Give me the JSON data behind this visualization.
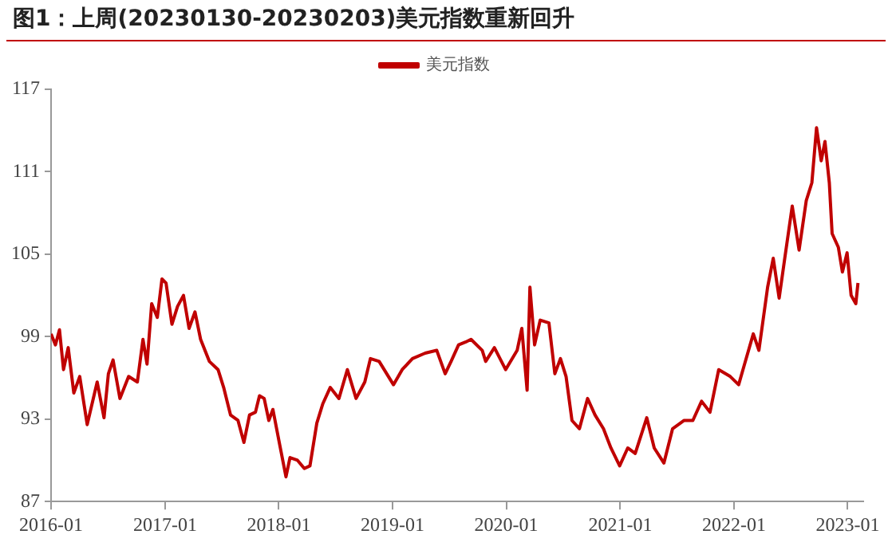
{
  "chart_data": {
    "type": "line",
    "title": "图1：上周(20230130-20230203)美元指数重新回升",
    "x": [
      "2016-01-01",
      "2016-01-15",
      "2016-01-28",
      "2016-02-10",
      "2016-02-25",
      "2016-03-14",
      "2016-04-02",
      "2016-04-26",
      "2016-05-28",
      "2016-06-19",
      "2016-07-03",
      "2016-07-18",
      "2016-08-09",
      "2016-09-06",
      "2016-10-04",
      "2016-10-22",
      "2016-11-04",
      "2016-11-19",
      "2016-12-07",
      "2016-12-22",
      "2017-01-04",
      "2017-01-23",
      "2017-02-10",
      "2017-03-01",
      "2017-03-19",
      "2017-04-07",
      "2017-04-25",
      "2017-05-23",
      "2017-06-20",
      "2017-07-08",
      "2017-07-30",
      "2017-08-23",
      "2017-09-11",
      "2017-09-29",
      "2017-10-18",
      "2017-10-31",
      "2017-11-15",
      "2017-11-30",
      "2017-12-13",
      "2018-01-05",
      "2018-01-24",
      "2018-02-06",
      "2018-03-02",
      "2018-03-24",
      "2018-04-11",
      "2018-05-03",
      "2018-05-22",
      "2018-06-15",
      "2018-07-13",
      "2018-08-09",
      "2018-09-06",
      "2018-10-04",
      "2018-10-22",
      "2018-11-19",
      "2019-01-04",
      "2019-02-01",
      "2019-03-06",
      "2019-04-16",
      "2019-05-23",
      "2019-06-19",
      "2019-07-08",
      "2019-08-01",
      "2019-08-23",
      "2019-09-10",
      "2019-10-16",
      "2019-10-27",
      "2019-11-24",
      "2019-12-30",
      "2020-02-05",
      "2020-02-20",
      "2020-03-08",
      "2020-03-17",
      "2020-04-01",
      "2020-04-19",
      "2020-05-17",
      "2020-06-05",
      "2020-06-23",
      "2020-07-11",
      "2020-07-30",
      "2020-08-23",
      "2020-09-18",
      "2020-10-12",
      "2020-11-08",
      "2020-12-02",
      "2020-12-30",
      "2021-01-25",
      "2021-02-18",
      "2021-03-27",
      "2021-04-20",
      "2021-05-21",
      "2021-06-18",
      "2021-07-25",
      "2021-08-22",
      "2021-09-19",
      "2021-10-16",
      "2021-11-13",
      "2021-12-20",
      "2022-01-16",
      "2022-02-04",
      "2022-03-04",
      "2022-03-22",
      "2022-04-19",
      "2022-05-07",
      "2022-05-26",
      "2022-06-13",
      "2022-07-07",
      "2022-07-29",
      "2022-08-21",
      "2022-09-08",
      "2022-09-23",
      "2022-10-08",
      "2022-10-20",
      "2022-11-03",
      "2022-11-12",
      "2022-12-02",
      "2022-12-15",
      "2022-12-30",
      "2023-01-12",
      "2023-01-27",
      "2023-02-03"
    ],
    "series": [
      {
        "name": "美元指数",
        "color": "#c00000",
        "values": [
          99.2,
          98.4,
          99.5,
          96.6,
          98.2,
          94.9,
          96.1,
          92.6,
          95.7,
          93.1,
          96.3,
          97.3,
          94.5,
          96.1,
          95.7,
          98.8,
          97.0,
          101.4,
          100.4,
          103.2,
          102.9,
          99.9,
          101.2,
          102.0,
          99.6,
          100.8,
          98.8,
          97.2,
          96.6,
          95.3,
          93.3,
          92.9,
          91.3,
          93.3,
          93.5,
          94.7,
          94.5,
          92.9,
          93.7,
          91.0,
          88.8,
          90.2,
          90.0,
          89.4,
          89.6,
          92.7,
          94.1,
          95.3,
          94.5,
          96.6,
          94.5,
          95.7,
          97.4,
          97.2,
          95.5,
          96.6,
          97.4,
          97.8,
          98.0,
          96.3,
          97.2,
          98.4,
          98.6,
          98.8,
          98.0,
          97.2,
          98.2,
          96.6,
          98.0,
          99.6,
          95.1,
          102.6,
          98.4,
          100.2,
          100.0,
          96.3,
          97.4,
          96.1,
          92.9,
          92.3,
          94.5,
          93.3,
          92.3,
          90.9,
          89.6,
          90.9,
          90.5,
          93.1,
          90.9,
          89.8,
          92.3,
          92.9,
          92.9,
          94.3,
          93.5,
          96.6,
          96.1,
          95.5,
          97.0,
          99.2,
          98.0,
          102.6,
          104.7,
          101.8,
          104.7,
          108.5,
          105.3,
          108.9,
          110.2,
          114.2,
          111.8,
          113.2,
          110.2,
          106.5,
          105.5,
          103.7,
          105.1,
          102.0,
          101.4,
          102.9
        ]
      }
    ],
    "xlim": [
      "2016-01-01",
      "2023-02-20"
    ],
    "xticks": [
      "2016-01",
      "2017-01",
      "2018-01",
      "2019-01",
      "2020-01",
      "2021-01",
      "2022-01",
      "2023-01"
    ],
    "ylim": [
      87,
      117
    ],
    "yticks": [
      87,
      93,
      99,
      105,
      111,
      117
    ],
    "grid": false,
    "legend": "top",
    "marker": "none",
    "line_style": "solid"
  }
}
